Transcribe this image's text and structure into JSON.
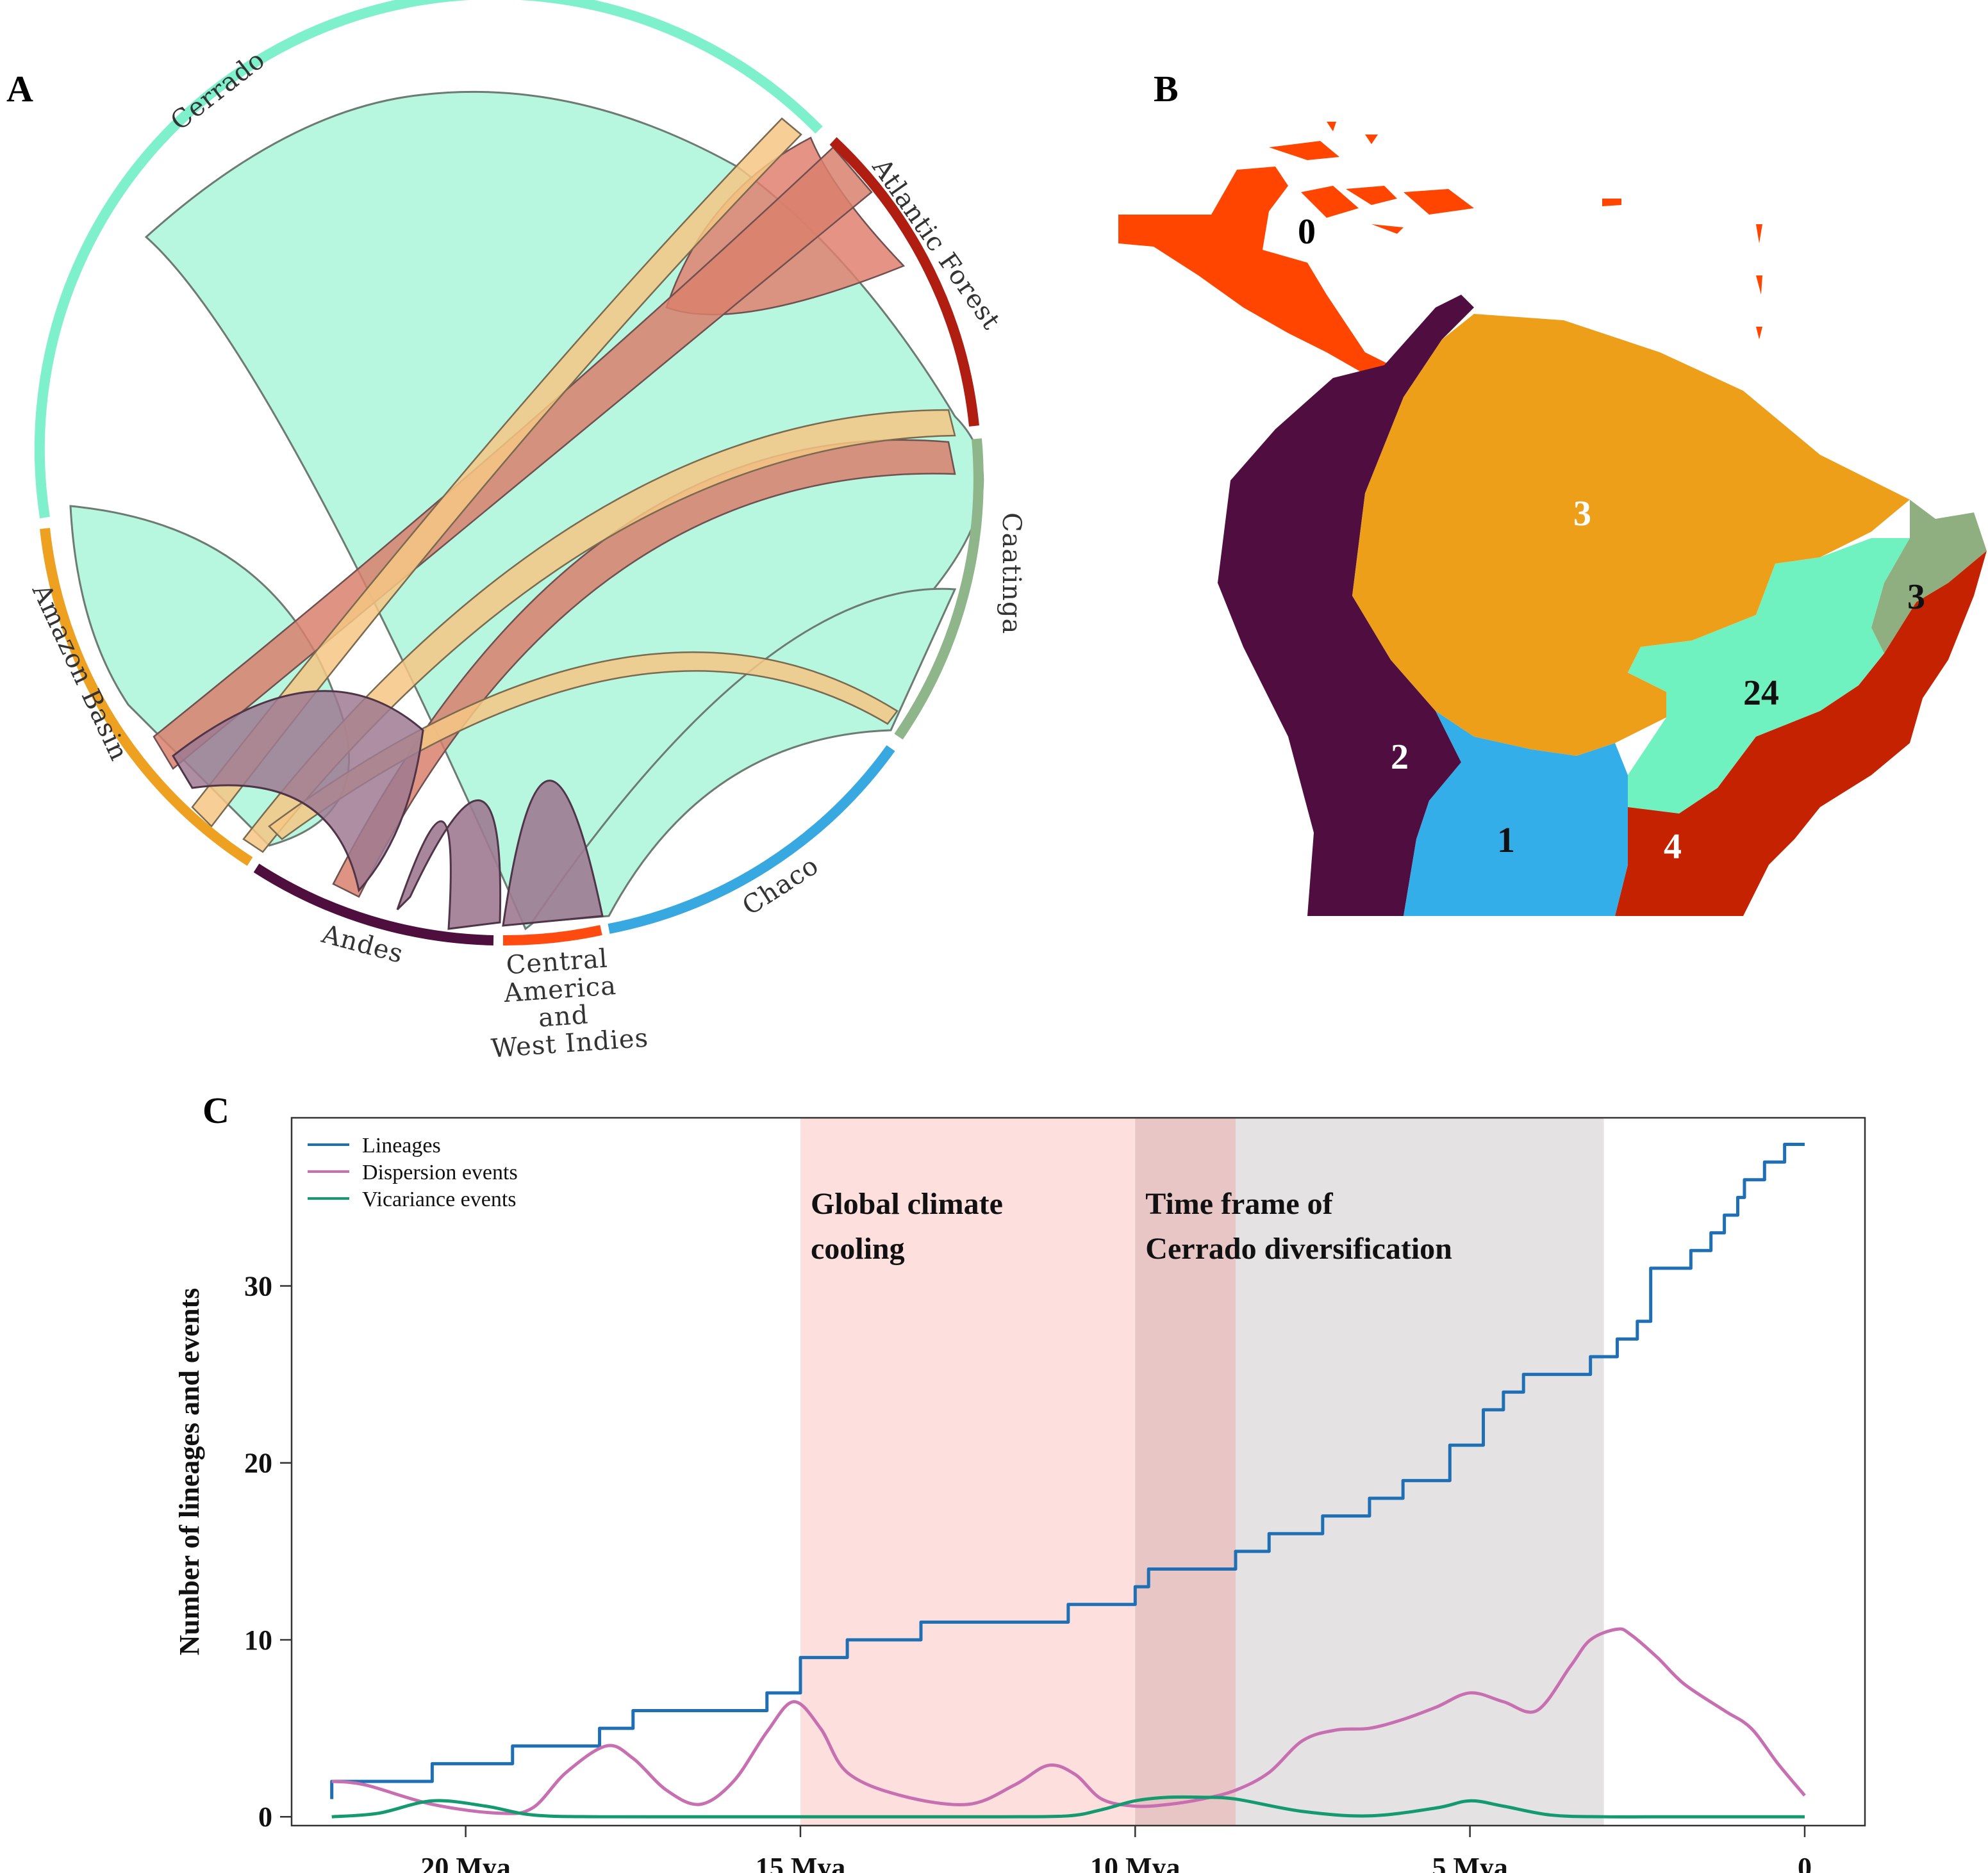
{
  "panels": {
    "a": "A",
    "b": "B",
    "c": "C"
  },
  "chord": {
    "regions": [
      {
        "id": "cerrado",
        "name": "Cerrado",
        "color": "#7ef0cc"
      },
      {
        "id": "atlantic",
        "name": "Atlantic Forest",
        "color": "#b01e12"
      },
      {
        "id": "caatinga",
        "name": "Caatinga",
        "color": "#8fb68a"
      },
      {
        "id": "chaco",
        "name": "Chaco",
        "color": "#37a8e0"
      },
      {
        "id": "cawi",
        "name": "Central America and West Indies",
        "color": "#ff4a10"
      },
      {
        "id": "andes",
        "name": "Andes",
        "color": "#4e0e3e"
      },
      {
        "id": "amazon",
        "name": "Amazon Basin",
        "color": "#eea020"
      }
    ],
    "cawi_lines": [
      "Central",
      "America",
      "and",
      "West Indies"
    ]
  },
  "map": {
    "regions": [
      {
        "name": "Central America and West Indies",
        "count": "0",
        "color": "#ff4500"
      },
      {
        "name": "Amazon Basin",
        "count": "3",
        "color": "#ee9f1a"
      },
      {
        "name": "Caatinga",
        "count": "3",
        "color": "#8faf80"
      },
      {
        "name": "Cerrado",
        "count": "24",
        "color": "#6ff2bf"
      },
      {
        "name": "Andes",
        "count": "2",
        "color": "#4f0e3f"
      },
      {
        "name": "Chaco",
        "count": "1",
        "color": "#33aee8"
      },
      {
        "name": "Atlantic Forest",
        "count": "4",
        "color": "#c42200"
      }
    ]
  },
  "chart_data": {
    "type": "line",
    "title": "",
    "xlabel": "",
    "ylabel": "Number of lineages and events",
    "xlim": [
      22.6,
      -0.9
    ],
    "ylim": [
      -0.5,
      39.5
    ],
    "xticks": [
      20,
      15,
      10,
      5,
      0
    ],
    "xtick_labels": [
      "20 Mya",
      "15 Mya",
      "10 Mya",
      "5 Mya",
      "0"
    ],
    "yticks": [
      0,
      10,
      20,
      30
    ],
    "ytick_labels": [
      "0",
      "10",
      "20",
      "30"
    ],
    "legend": {
      "position": "top-left"
    },
    "series": [
      {
        "name": "Lineages",
        "color": "#1f6fb5",
        "step": true,
        "x": [
          22,
          22,
          20.5,
          19.3,
          18,
          17.5,
          15.5,
          15,
          14.3,
          13.2,
          11,
          10,
          9.8,
          8.5,
          8,
          7.2,
          6.5,
          6,
          5.3,
          4.8,
          4.5,
          4.2,
          3.2,
          2.8,
          2.5,
          2.3,
          1.7,
          1.4,
          1.2,
          1,
          0.9,
          0.6,
          0.3,
          0
        ],
        "y": [
          1,
          2,
          3,
          4,
          5,
          6,
          7,
          9,
          10,
          11,
          12,
          13,
          14,
          15,
          16,
          17,
          18,
          19,
          21,
          23,
          24,
          25,
          26,
          27,
          28,
          31,
          32,
          33,
          34,
          35,
          36,
          37,
          38,
          38
        ]
      },
      {
        "name": "Dispersion events",
        "color": "#c86fb2",
        "x": [
          22,
          21.5,
          20.5,
          19.5,
          19,
          18.5,
          17.9,
          17.5,
          17,
          16.5,
          16,
          15.5,
          15.1,
          14.7,
          14.3,
          13.5,
          12.5,
          11.8,
          11.3,
          10.9,
          10.5,
          10,
          9.5,
          9,
          8.5,
          8,
          7.5,
          7,
          6.5,
          6,
          5.5,
          5,
          4.5,
          4,
          3.5,
          3.2,
          2.8,
          2.6,
          2.2,
          1.8,
          1.2,
          0.8,
          0.4,
          0
        ],
        "y": [
          2,
          1.8,
          0.7,
          0.2,
          0.5,
          2.5,
          4,
          3.3,
          1.5,
          0.7,
          2,
          4.8,
          6.5,
          5,
          2.5,
          1.2,
          0.7,
          1.8,
          2.9,
          2.4,
          1,
          0.6,
          0.7,
          1,
          1.5,
          2.5,
          4.3,
          4.9,
          5,
          5.5,
          6.2,
          7,
          6.5,
          6,
          8.5,
          10,
          10.6,
          10.3,
          9,
          7.5,
          6,
          5,
          3,
          1.2
        ]
      },
      {
        "name": "Vicariance events",
        "color": "#139a6e",
        "x": [
          22,
          21.3,
          20.5,
          19.7,
          19,
          18,
          16,
          14,
          12,
          11,
          10.5,
          10,
          9.5,
          9,
          8.5,
          7.5,
          6.5,
          5.5,
          5,
          4.5,
          3.8,
          3,
          2,
          1,
          0
        ],
        "y": [
          0,
          0.2,
          0.9,
          0.6,
          0.1,
          0,
          0,
          0,
          0,
          0.05,
          0.4,
          0.9,
          1.1,
          1.1,
          1,
          0.3,
          0.05,
          0.5,
          0.9,
          0.6,
          0.1,
          0,
          0,
          0,
          0
        ]
      }
    ],
    "shaded_regions": [
      {
        "label_lines": [
          "Global climate",
          "cooling"
        ],
        "x_start": 15,
        "x_end": 10,
        "color": "#fde0de"
      },
      {
        "label_lines": [
          "Time frame of",
          "Cerrado diversification"
        ],
        "x_start": 10,
        "x_end": 3,
        "color": "#e4e2e3"
      }
    ],
    "overlap": {
      "x_start": 10,
      "x_end": 8.5,
      "color": "#e8c6c6"
    }
  }
}
